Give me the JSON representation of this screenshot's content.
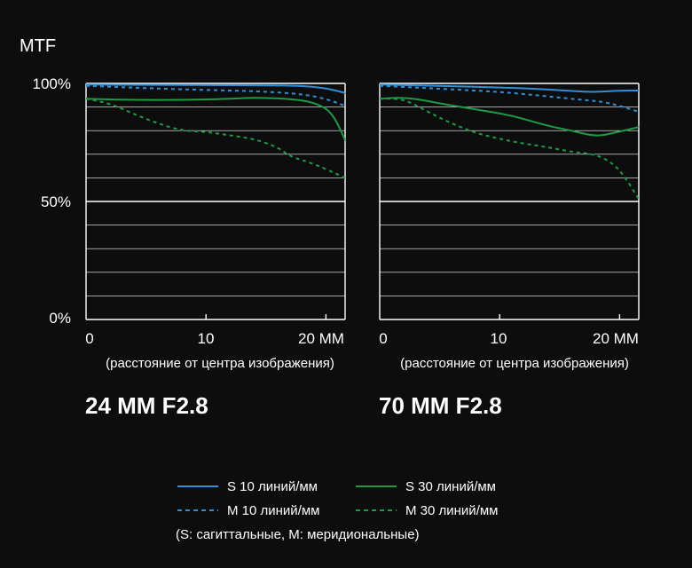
{
  "colors": {
    "background": "#0d0d0d",
    "grid": "#ffffff",
    "s10": "#2f8fd6",
    "m10": "#2f8fd6",
    "s30": "#1c9a46",
    "m30": "#1c9a46"
  },
  "axis": {
    "y_title": "MTF",
    "y_ticks": [
      "100%",
      "50%",
      "0%"
    ],
    "x_ticks": [
      "0",
      "10",
      "20 MM"
    ],
    "x_caption": "(расстояние от центра изображения)"
  },
  "legend": {
    "s10": "S 10 линий/мм",
    "s30": "S 30 линий/мм",
    "m10": "M 10 линий/мм",
    "m30": "M 30 линий/мм",
    "note": "(S: сагиттальные, M: меридиональные)"
  },
  "chart_data": [
    {
      "type": "line",
      "title": "24 MM F2.8",
      "xlim": [
        0,
        21.6
      ],
      "ylim": [
        0,
        100
      ],
      "y_major_ticks": [
        0,
        50,
        100
      ],
      "grid": true,
      "series": [
        {
          "name": "S 10 линий/мм",
          "style": "solid",
          "color_key": "s10",
          "x": [
            0,
            5,
            10,
            15,
            18,
            20,
            21.6
          ],
          "y": [
            99.5,
            99.4,
            99.3,
            99.2,
            99.0,
            98.0,
            96.0
          ]
        },
        {
          "name": "M 10 линий/мм",
          "style": "dashed",
          "color_key": "m10",
          "x": [
            0,
            4,
            8,
            12,
            15,
            18,
            20,
            21.6
          ],
          "y": [
            99.0,
            98.2,
            97.5,
            97.0,
            96.5,
            95.5,
            93.5,
            90.5
          ]
        },
        {
          "name": "S 30 линий/мм",
          "style": "solid",
          "color_key": "s30",
          "x": [
            0,
            4,
            8,
            12,
            14,
            17,
            19,
            20.5,
            21.6
          ],
          "y": [
            93.5,
            93.0,
            93.0,
            93.5,
            94.0,
            93.5,
            92.0,
            88.0,
            76.0
          ]
        },
        {
          "name": "M 30 линий/мм",
          "style": "dashed",
          "color_key": "m30",
          "x": [
            0,
            2,
            4,
            6,
            8,
            10,
            12,
            14,
            16,
            17,
            19,
            21.6
          ],
          "y": [
            93.5,
            91.5,
            87.0,
            83.0,
            80.0,
            79.5,
            78.0,
            76.5,
            73.0,
            69.0,
            66.0,
            60.0
          ]
        }
      ]
    },
    {
      "type": "line",
      "title": "70 MM F2.8",
      "xlim": [
        0,
        21.6
      ],
      "ylim": [
        0,
        100
      ],
      "y_major_ticks": [
        0,
        50,
        100
      ],
      "grid": true,
      "series": [
        {
          "name": "S 10 линий/мм",
          "style": "solid",
          "color_key": "s10",
          "x": [
            0,
            5,
            10,
            13,
            16,
            18,
            20,
            21.6
          ],
          "y": [
            99.5,
            99.0,
            98.3,
            97.8,
            96.8,
            96.3,
            97.0,
            97.0
          ]
        },
        {
          "name": "M 10 линий/мм",
          "style": "dashed",
          "color_key": "m10",
          "x": [
            0,
            4,
            8,
            11,
            14,
            17,
            19,
            21.6
          ],
          "y": [
            99.0,
            98.0,
            97.0,
            96.0,
            94.5,
            93.0,
            92.0,
            88.0
          ]
        },
        {
          "name": "S 30 линий/мм",
          "style": "solid",
          "color_key": "s30",
          "x": [
            0,
            1.5,
            3,
            5,
            8,
            11,
            14,
            16,
            18,
            19.5,
            21.6
          ],
          "y": [
            93.5,
            94.0,
            93.5,
            91.5,
            89.0,
            86.5,
            82.0,
            80.0,
            77.5,
            79.0,
            81.5
          ]
        },
        {
          "name": "M 30 линий/мм",
          "style": "dashed",
          "color_key": "m30",
          "x": [
            0,
            2,
            4,
            6,
            8,
            10,
            12,
            14,
            16,
            18,
            19.5,
            20.5,
            21.6
          ],
          "y": [
            93.5,
            93.5,
            88.0,
            83.0,
            79.0,
            76.5,
            74.5,
            73.0,
            71.0,
            70.0,
            66.0,
            60.0,
            51.0
          ]
        }
      ]
    }
  ]
}
